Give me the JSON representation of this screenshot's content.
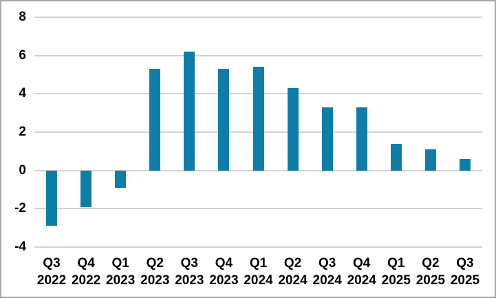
{
  "chart_data": {
    "type": "bar",
    "title": "",
    "xlabel": "",
    "ylabel": "",
    "categories": [
      {
        "quarter": "Q3",
        "year": "2022"
      },
      {
        "quarter": "Q4",
        "year": "2022"
      },
      {
        "quarter": "Q1",
        "year": "2023"
      },
      {
        "quarter": "Q2",
        "year": "2023"
      },
      {
        "quarter": "Q3",
        "year": "2023"
      },
      {
        "quarter": "Q4",
        "year": "2023"
      },
      {
        "quarter": "Q1",
        "year": "2024"
      },
      {
        "quarter": "Q2",
        "year": "2024"
      },
      {
        "quarter": "Q3",
        "year": "2024"
      },
      {
        "quarter": "Q4",
        "year": "2024"
      },
      {
        "quarter": "Q1",
        "year": "2025"
      },
      {
        "quarter": "Q2",
        "year": "2025"
      },
      {
        "quarter": "Q3",
        "year": "2025"
      }
    ],
    "values": [
      -2.9,
      -1.9,
      -0.9,
      5.3,
      6.2,
      5.3,
      5.4,
      4.3,
      3.3,
      3.3,
      1.4,
      1.1,
      0.6
    ],
    "y_ticks": [
      8,
      6,
      4,
      2,
      0,
      -2,
      -4
    ],
    "ylim": [
      -4,
      8
    ],
    "grid": true,
    "legend_position": "none",
    "colors": {
      "bar_fill": "#0e7ea9",
      "gridline": "#d2d2d2",
      "frame_border": "#a8a8a8",
      "label_text": "#000000",
      "background": "#ffffff"
    }
  }
}
